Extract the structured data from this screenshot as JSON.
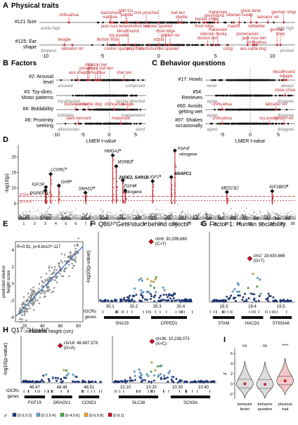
{
  "panelA": {
    "letter": "A",
    "title": "Physical traits",
    "rows": [
      {
        "label": [
          "#121 Size"
        ],
        "left_anchor": "ankle-high",
        "right_anchor": "high high",
        "top_breeds": [
          {
            "t": "chihuahua",
            "x": -7.9,
            "dy": -9
          },
          {
            "t": "dachshund",
            "x": -4.2,
            "dy": -12
          },
          {
            "t": "maltese",
            "x": -4.3,
            "dy": -6
          },
          {
            "t": "shih tzu",
            "x": -2.9,
            "dy": -15
          },
          {
            "t": "poodle",
            "x": -2.8,
            "dy": -9
          },
          {
            "t": "mini pinscher",
            "x": -1.1,
            "dy": -12
          },
          {
            "t": "bull terr",
            "x": 1.7,
            "dy": -12
          },
          {
            "t": "sheltie",
            "x": 2.0,
            "dy": -6
          },
          {
            "t": "malamute",
            "x": 5.2,
            "dy": -13
          },
          {
            "t": "greyhound",
            "x": 4.9,
            "dy": -8
          },
          {
            "t": "border collie",
            "x": 4.2,
            "dy": -3
          },
          {
            "t": "great dane",
            "x": 8.1,
            "dy": -15
          },
          {
            "t": "siberian husky",
            "x": 7.1,
            "dy": -9
          },
          {
            "t": "german shep",
            "x": 11.0,
            "dy": -13
          },
          {
            "t": "labrador ret",
            "x": 9.6,
            "dy": -6
          }
        ],
        "bottom_breeds": [
          {
            "t": "jack russ terr",
            "x": -4.0,
            "dy": 7
          },
          {
            "t": "yorkshire terr",
            "x": -1.9,
            "dy": 7
          },
          {
            "t": "cocker spaniel",
            "x": 0.0,
            "dy": 7
          },
          {
            "t": "rhod ridge",
            "x": 4.0,
            "dy": 7
          },
          {
            "t": "mastiff",
            "x": 6.6,
            "dy": 7
          },
          {
            "t": "rottweiler",
            "x": 8.6,
            "dy": 7
          }
        ]
      },
      {
        "label": [
          "#125: Ear",
          "shape"
        ],
        "left_anchor": "dropped",
        "right_anchor": "pricked",
        "top_breeds": [
          {
            "t": "beagle",
            "x": -8.3,
            "dy": -6
          },
          {
            "t": "bloodhound",
            "x": -2.7,
            "dy": -18
          },
          {
            "t": "toy poodle",
            "x": -3.5,
            "dy": -12
          },
          {
            "t": "bichon frise",
            "x": -4.5,
            "dy": -6
          },
          {
            "t": "rhod ridge",
            "x": 0.6,
            "dy": -18
          },
          {
            "t": "golden ret",
            "x": 1.0,
            "dy": -12
          },
          {
            "t": "vizsla",
            "x": 0.0,
            "dy": -6
          },
          {
            "t": "malamute",
            "x": 5.2,
            "dy": -20
          },
          {
            "t": "siberian husky",
            "x": 4.8,
            "dy": -14
          },
          {
            "t": "boston terr",
            "x": 4.3,
            "dy": -8
          },
          {
            "t": "pomeranian",
            "x": 7.8,
            "dy": -14
          },
          {
            "t": "jack russ terr",
            "x": 8.4,
            "dy": -8
          },
          {
            "t": "chihuahua",
            "x": 8.6,
            "dy": -2
          },
          {
            "t": "german",
            "x": 10.4,
            "dy": -20
          },
          {
            "t": "shep",
            "x": 10.7,
            "dy": -14
          }
        ],
        "bottom_breeds": [
          {
            "t": "labrador ret",
            "x": -7.6,
            "dy": 7
          },
          {
            "t": "cocker spaniel",
            "x": -3.6,
            "dy": 7
          },
          {
            "t": "pt griffon",
            "x": -2.1,
            "dy": 7
          },
          {
            "t": "dachshund",
            "x": -0.8,
            "dy": 7
          },
          {
            "t": "es spaniel",
            "x": 0.9,
            "dy": 7
          },
          {
            "t": "corgi",
            "x": 6.1,
            "dy": 7
          },
          {
            "t": "aus cattle dog",
            "x": 8.3,
            "dy": 7
          }
        ]
      }
    ],
    "ticks": [
      "-10",
      "-5",
      "0",
      "5",
      "10"
    ]
  },
  "panelB": {
    "letter": "B",
    "title": "Factors",
    "xlabel": "LMER t-value",
    "ticks": [
      "-10",
      "-5",
      "0",
      "5"
    ],
    "rows": [
      {
        "label": [
          "#2: Arousal",
          "level"
        ],
        "left_anchor": "aroused",
        "right_anchor": "composed",
        "top_breeds": [
          {
            "t": "mini",
            "x": -3.8,
            "dy": -20
          },
          {
            "t": "pinscher",
            "x": -4.1,
            "dy": -15
          },
          {
            "t": "aus shep",
            "x": -6.0,
            "dy": -9
          },
          {
            "t": "boston terr",
            "x": -2.2,
            "dy": -20
          },
          {
            "t": "am pit bull terr",
            "x": -1.7,
            "dy": -15
          },
          {
            "t": "chihuahua",
            "x": -2.6,
            "dy": -9
          },
          {
            "t": "shar pei",
            "x": 2.8,
            "dy": -9
          }
        ],
        "bottom_breeds": []
      },
      {
        "label": [
          "#3: Toy-direc.",
          "Motor patterns"
        ],
        "left_anchor": "toy-directed",
        "right_anchor": "not toy-directed",
        "top_breeds": [],
        "bottom_breeds": []
      },
      {
        "label": [
          "#4: Biddability"
        ],
        "left_anchor": "biddable",
        "right_anchor": "independent",
        "top_breeds": [
          {
            "t": "border collie",
            "x": -6.3,
            "dy": -6
          },
          {
            "t": "aus cattle dog",
            "x": -3.9,
            "dy": -6
          },
          {
            "t": "chihuahua",
            "x": 1.0,
            "dy": -6
          },
          {
            "t": "beagle",
            "x": 3.5,
            "dy": -6
          }
        ],
        "bottom_breeds": []
      },
      {
        "label": [
          "#8: Proximity",
          "seeking"
        ],
        "left_anchor": "affectionate",
        "right_anchor": "aloof",
        "top_breeds": [
          {
            "t": "saint bernard",
            "x": -5.8,
            "dy": -6
          },
          {
            "t": "malamute",
            "x": 2.2,
            "dy": -6
          }
        ],
        "bottom_breeds": []
      }
    ]
  },
  "panelC": {
    "letter": "C",
    "title": "Behavior questions",
    "xlabel": "LMER t-value",
    "ticks": [
      "-5",
      "0",
      "5"
    ],
    "rows": [
      {
        "label": [
          "#17: Howls"
        ],
        "left_anchor": "never",
        "right_anchor": "always",
        "top_breeds": [
          {
            "t": "bloodhound",
            "x": 6.0,
            "dy": -10
          },
          {
            "t": "beagle",
            "x": 6.4,
            "dy": -4
          }
        ],
        "bottom_breeds": []
      },
      {
        "label": [
          "#54:",
          "Retrieves"
        ],
        "left_anchor": "agree",
        "right_anchor": "disagree",
        "top_breeds": [
          {
            "t": "chow chow",
            "x": 6.2,
            "dy": -6
          }
        ],
        "bottom_breeds": []
      },
      {
        "label": [
          "#60: Avoids",
          "getting wet"
        ],
        "left_anchor": "agree",
        "right_anchor": "disagree",
        "top_breeds": [
          {
            "t": "chihuahua",
            "x": -5.0,
            "dy": -6
          },
          {
            "t": "labrador ret",
            "x": 4.6,
            "dy": -6
          }
        ],
        "bottom_breeds": []
      },
      {
        "label": [
          "#97: Shakes",
          "occasionally"
        ],
        "left_anchor": "agree",
        "right_anchor": "disagree",
        "top_breeds": [
          {
            "t": "chihuahua",
            "x": -5.0,
            "dy": -6
          },
          {
            "t": "toy poodle",
            "x": 3.4,
            "dy": -6
          },
          {
            "t": "golden ret",
            "x": 6.0,
            "dy": -6
          }
        ],
        "bottom_breeds": []
      }
    ]
  },
  "panelD": {
    "letter": "D",
    "ylabel": "-log10(p)",
    "yticks": [
      "5",
      "10",
      "15",
      "20"
    ],
    "xticks": [
      "1",
      "2",
      "3",
      "4",
      "5",
      "6",
      "7",
      "8",
      "9",
      "10",
      "12",
      "14",
      "16",
      "18",
      "20",
      "22",
      "24",
      "26",
      "28",
      "30",
      "32",
      "34",
      "36",
      "38"
    ],
    "thresholds": [
      {
        "label": "p=5e-8",
        "y": 7.3
      },
      {
        "label": "p=1e-6",
        "y": 6.0
      }
    ],
    "peaks": [
      {
        "gene": "IGF1R",
        "sup": "",
        "chr": 3.05,
        "y": 10.3,
        "label_dx": -20,
        "label_dy": -2
      },
      {
        "gene": "PGPEP1L",
        "sup": "a",
        "chr": 3.0,
        "y": 9.2,
        "label_dx": -22,
        "label_dy": 6
      },
      {
        "gene": "LCORL",
        "sup": "b",
        "chr": 3.5,
        "y": 14.5,
        "label_dx": 0,
        "label_dy": -4
      },
      {
        "gene": "GHR",
        "sup": "c",
        "chr": 4.3,
        "y": 10.8,
        "label_dx": 3,
        "label_dy": -3
      },
      {
        "gene": "SMAD2",
        "sup": "d",
        "chr": 7.0,
        "y": 8.5,
        "label_dx": -10,
        "label_dy": -4
      },
      {
        "gene": "HMGA2",
        "sup": "e",
        "chr": 10.0,
        "y": 20.5,
        "label_dx": -12,
        "label_dy": -4
      },
      {
        "gene": "MSRB3",
        "sup": "f",
        "chr": 10.4,
        "y": 17.0,
        "label_dx": 2,
        "label_dy": -4
      },
      {
        "gene": "JADE2, SAR1B",
        "sup": "",
        "chr": 11.2,
        "y": 12.5,
        "label_dx": -6,
        "label_dy": -2
      },
      {
        "gene": "FGF4",
        "sup": "g",
        "chr": 11.5,
        "y": 9.2,
        "label_dx": -2,
        "label_dy": -4
      },
      {
        "gene": "retrogene",
        "sup": "",
        "chr": 11.5,
        "y": 9.2,
        "label_dx": -2,
        "label_dy": 4
      },
      {
        "gene": "IGF1",
        "sup": "h",
        "chr": 15.0,
        "y": 12.2,
        "label_dx": -4,
        "label_dy": -4
      },
      {
        "gene": "FGF4",
        "sup": "i",
        "chr": 18.0,
        "y": 22.0,
        "label_dx": 4,
        "label_dy": -1
      },
      {
        "gene": "retrogene",
        "sup": "",
        "chr": 18.0,
        "y": 22.0,
        "label_dx": 6,
        "label_dy": 7
      },
      {
        "gene": "ANAPC1",
        "sup": "",
        "chr": 17.5,
        "y": 13.5,
        "label_dx": 4,
        "label_dy": -3
      },
      {
        "gene": "MED13L",
        "sup": "j",
        "chr": 26.0,
        "y": 8.7,
        "label_dx": -8,
        "label_dy": -4
      },
      {
        "gene": "IGF2BP2",
        "sup": "k",
        "chr": 34.0,
        "y": 9.0,
        "label_dx": -4,
        "label_dy": -4
      }
    ]
  },
  "panelE": {
    "letter": "E",
    "stat": "R=0.91; p=8.8x10^-117",
    "xlabel": "measured height (cm)",
    "ylabel": [
      "predicted relative",
      "height score"
    ],
    "xticks": [
      "20",
      "40",
      "60",
      "80"
    ],
    "yticks": [
      "-4",
      "-2",
      "0",
      "2",
      "4"
    ]
  },
  "panelF": {
    "letter": "F",
    "title": "Q36: \"Gets stuck behind objects\"",
    "ylabel": "-log10(p-value)",
    "lead": [
      "chr6: 30,299,660",
      "(C>T)"
    ],
    "xticks": [
      "30.1",
      "30.2",
      "30.3",
      "30.4"
    ],
    "genes": [
      "SNX29",
      "CPPED1"
    ]
  },
  "panelG": {
    "letter": "G",
    "title": "Factor 1: Human sociability.",
    "lead": [
      "chr2: 19,430,669",
      "(G>T)"
    ],
    "xticks": [
      "19.3",
      "19.4",
      "19.5"
    ],
    "genes": [
      "STAM",
      "HACD1",
      "ST8SIA6"
    ]
  },
  "panelH": {
    "letter": "H",
    "title": "Q17: \"Howls\"",
    "ylabel": "-log10(p-value)",
    "lead1": [
      "chr18: 48,487,378",
      "(G>A)"
    ],
    "lead2": [
      "chr36: 10,238,073",
      "(A>C)"
    ],
    "xticks1": [
      "48.47",
      "48.49",
      "48.51"
    ],
    "xticks2": [
      "10.10",
      "10.20",
      "10.30",
      "10.40"
    ],
    "genes1": [
      "FGF19",
      "ORAOV1",
      "CCND1"
    ],
    "genes2": [
      "SLC38",
      "SCN3A"
    ],
    "legend_title": "r²",
    "legend": [
      {
        "label": "[0.0,0.2]",
        "color": "#1b3a8a"
      },
      {
        "label": "[0.2,0.4]",
        "color": "#5fa8d9"
      },
      {
        "label": "[0.4,0.6]",
        "color": "#4caf50"
      },
      {
        "label": "[0.6,0.8]",
        "color": "#f5a623"
      },
      {
        "label": "[0.8,1]",
        "color": "#d0021b"
      }
    ]
  },
  "panelI": {
    "letter": "I",
    "ylabel": "z",
    "yticks": [
      "-2",
      "0",
      "2",
      "4",
      "6"
    ],
    "groups": [
      {
        "name": [
          "behavior",
          "factor"
        ],
        "sig": "ns",
        "median": 0.0,
        "fill": "#dddddd"
      },
      {
        "name": [
          "behavior",
          "question"
        ],
        "sig": "ns",
        "median": -0.1,
        "fill": "#dddddd"
      },
      {
        "name": [
          "physical",
          "trait"
        ],
        "sig": "****",
        "median": 0.6,
        "fill": "#f4c8c8"
      }
    ]
  },
  "common": {
    "rocrs": "rOCRs",
    "genes_label": "genes"
  },
  "colors": {
    "red": "#c0272d",
    "grey": "#777777",
    "manhattan_dark": "#5a5a5a",
    "manhattan_light": "#a8a8a8"
  }
}
